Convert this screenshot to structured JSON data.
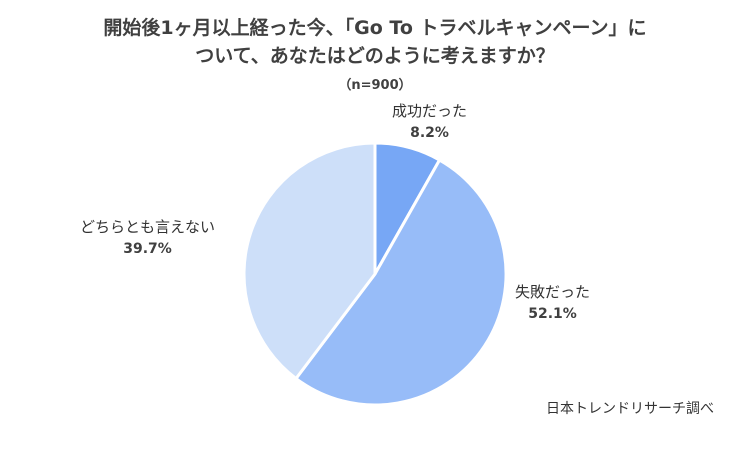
{
  "chart_data": {
    "type": "pie",
    "title_lines": [
      "開始後1ヶ月以上経った今、「Go To トラベルキャンペーン」に",
      "ついて、あなたはどのように考えますか？"
    ],
    "subtitle": "（n=900）",
    "unit": "%",
    "slices": [
      {
        "name": "成功だった",
        "value": 8.2,
        "label": "8.2%",
        "color": "#77a7f5"
      },
      {
        "name": "失敗だった",
        "value": 52.1,
        "label": "52.1%",
        "color": "#97bcf8"
      },
      {
        "name": "どちらとも言えない",
        "value": 39.7,
        "label": "39.7%",
        "color": "#cddff9"
      }
    ],
    "start_angle_deg": 0,
    "direction": "clockwise",
    "source": "日本トレンドリサーチ調べ"
  }
}
